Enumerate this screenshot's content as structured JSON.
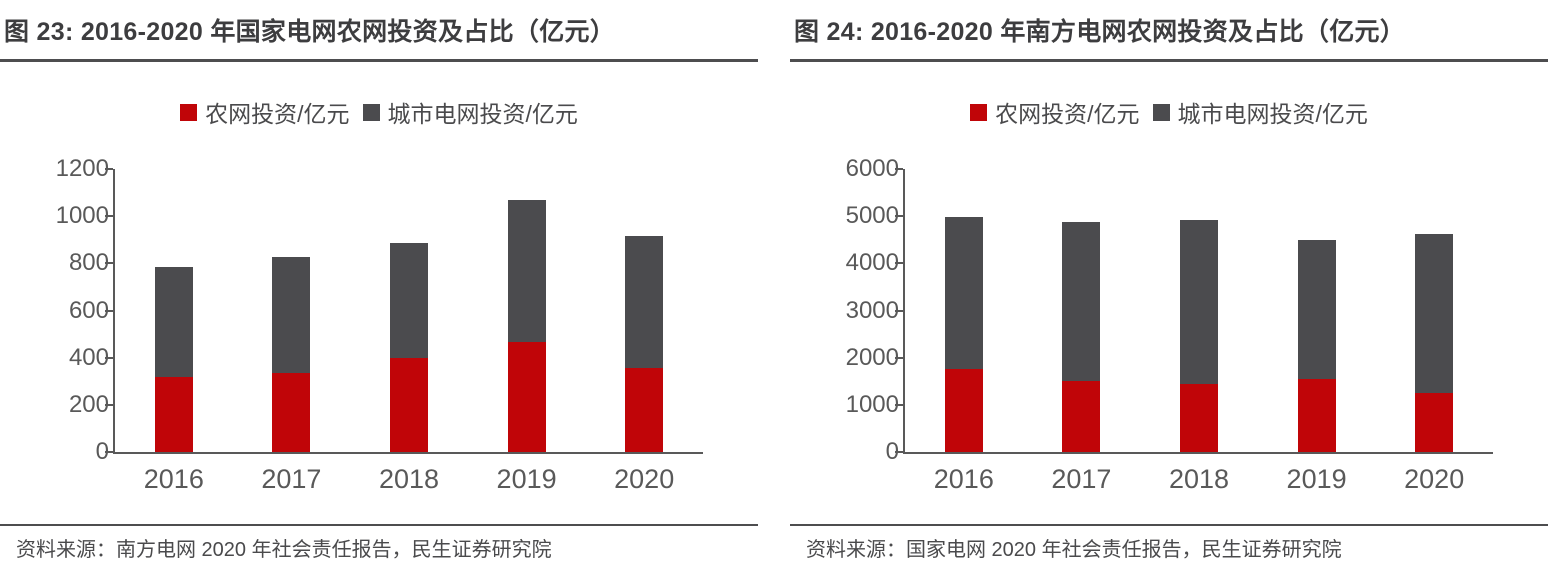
{
  "page": {
    "background": "#ffffff"
  },
  "colors": {
    "rural_series": "#C00508",
    "urban_series": "#4B4B4E",
    "axis": "#595959",
    "divider": "#4D4D4F",
    "title_text": "#3D3D3F"
  },
  "panels": [
    {
      "title": "图 23: 2016-2020 年国家电网农网投资及占比（亿元）",
      "legend": [
        {
          "label": "农网投资/亿元",
          "color": "#C00508"
        },
        {
          "label": "城市电网投资/亿元",
          "color": "#4B4B4E"
        }
      ],
      "source": "资料来源：南方电网 2020 年社会责任报告，民生证券研究院"
    },
    {
      "title": "图 24: 2016-2020 年南方电网农网投资及占比（亿元）",
      "legend": [
        {
          "label": "农网投资/亿元",
          "color": "#C00508"
        },
        {
          "label": "城市电网投资/亿元",
          "color": "#4B4B4E"
        }
      ],
      "source": "资料来源：国家电网 2020 年社会责任报告，民生证券研究院"
    }
  ],
  "chart_data": [
    {
      "type": "bar",
      "stacked": true,
      "title": "图 23: 2016-2020 年国家电网农网投资及占比（亿元）",
      "categories": [
        "2016",
        "2017",
        "2018",
        "2019",
        "2020"
      ],
      "series": [
        {
          "name": "农网投资/亿元",
          "color": "#C00508",
          "values": [
            320,
            335,
            400,
            465,
            355
          ]
        },
        {
          "name": "城市电网投资/亿元",
          "color": "#4B4B4E",
          "values": [
            465,
            490,
            485,
            605,
            560
          ]
        }
      ],
      "totals": [
        785,
        825,
        885,
        1070,
        915
      ],
      "ylim": [
        0,
        1200
      ],
      "yticks": [
        0,
        200,
        400,
        600,
        800,
        1000,
        1200
      ],
      "grid": false,
      "legend_position": "top"
    },
    {
      "type": "bar",
      "stacked": true,
      "title": "图 24: 2016-2020 年南方电网农网投资及占比（亿元）",
      "categories": [
        "2016",
        "2017",
        "2018",
        "2019",
        "2020"
      ],
      "series": [
        {
          "name": "农网投资/亿元",
          "color": "#C00508",
          "values": [
            1750,
            1500,
            1440,
            1545,
            1245
          ]
        },
        {
          "name": "城市电网投资/亿元",
          "color": "#4B4B4E",
          "values": [
            3230,
            3370,
            3480,
            2945,
            3385
          ]
        }
      ],
      "totals": [
        4980,
        4870,
        4920,
        4490,
        4630
      ],
      "ylim": [
        0,
        6000
      ],
      "yticks": [
        0,
        1000,
        2000,
        3000,
        4000,
        5000,
        6000
      ],
      "grid": false,
      "legend_position": "top"
    }
  ]
}
